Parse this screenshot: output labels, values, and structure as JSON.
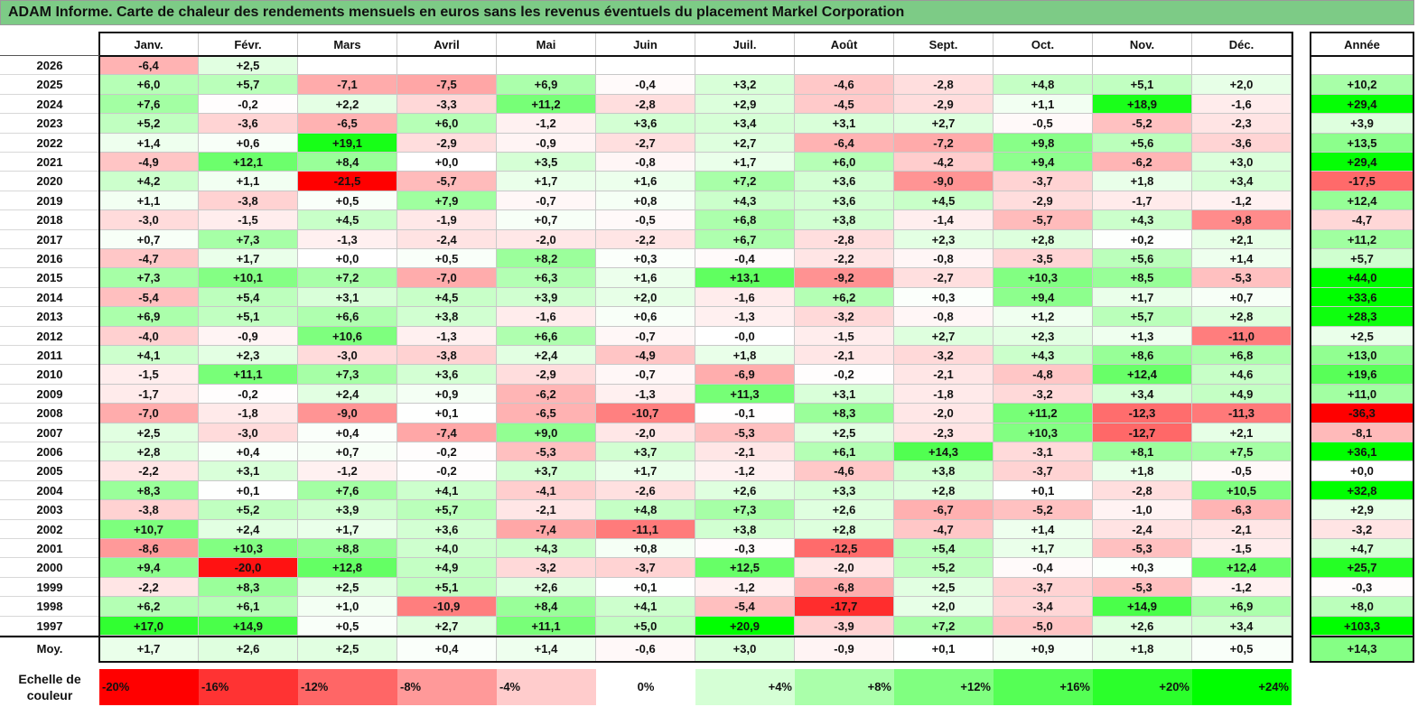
{
  "title": "ADAM Informe. Carte de chaleur des rendements mensuels en euros sans les revenus éventuels du placement Markel Corporation",
  "chart_data": {
    "type": "heatmap",
    "columns": [
      "Janv.",
      "Févr.",
      "Mars",
      "Avril",
      "Mai",
      "Juin",
      "Juil.",
      "Août",
      "Sept.",
      "Oct.",
      "Nov.",
      "Déc."
    ],
    "year_column": "Année",
    "average_label": "Moy.",
    "scale_label": "Echelle de couleur",
    "rows": [
      {
        "label": "2026",
        "months": [
          "-6,4",
          "+2,5",
          "",
          "",
          "",
          "",
          "",
          "",
          "",
          "",
          "",
          ""
        ],
        "year": ""
      },
      {
        "label": "2025",
        "months": [
          "+6,0",
          "+5,7",
          "-7,1",
          "-7,5",
          "+6,9",
          "-0,4",
          "+3,2",
          "-4,6",
          "-2,8",
          "+4,8",
          "+5,1",
          "+2,0"
        ],
        "year": "+10,2"
      },
      {
        "label": "2024",
        "months": [
          "+7,6",
          "-0,2",
          "+2,2",
          "-3,3",
          "+11,2",
          "-2,8",
          "+2,9",
          "-4,5",
          "-2,9",
          "+1,1",
          "+18,9",
          "-1,6"
        ],
        "year": "+29,4"
      },
      {
        "label": "2023",
        "months": [
          "+5,2",
          "-3,6",
          "-6,5",
          "+6,0",
          "-1,2",
          "+3,6",
          "+3,4",
          "+3,1",
          "+2,7",
          "-0,5",
          "-5,2",
          "-2,3"
        ],
        "year": "+3,9"
      },
      {
        "label": "2022",
        "months": [
          "+1,4",
          "+0,6",
          "+19,1",
          "-2,9",
          "-0,9",
          "-2,7",
          "+2,7",
          "-6,4",
          "-7,2",
          "+9,8",
          "+5,6",
          "-3,6"
        ],
        "year": "+13,5"
      },
      {
        "label": "2021",
        "months": [
          "-4,9",
          "+12,1",
          "+8,4",
          "+0,0",
          "+3,5",
          "-0,8",
          "+1,7",
          "+6,0",
          "-4,2",
          "+9,4",
          "-6,2",
          "+3,0"
        ],
        "year": "+29,4"
      },
      {
        "label": "2020",
        "months": [
          "+4,2",
          "+1,1",
          "-21,5",
          "-5,7",
          "+1,7",
          "+1,6",
          "+7,2",
          "+3,6",
          "-9,0",
          "-3,7",
          "+1,8",
          "+3,4"
        ],
        "year": "-17,5"
      },
      {
        "label": "2019",
        "months": [
          "+1,1",
          "-3,8",
          "+0,5",
          "+7,9",
          "-0,7",
          "+0,8",
          "+4,3",
          "+3,6",
          "+4,5",
          "-2,9",
          "-1,7",
          "-1,2"
        ],
        "year": "+12,4"
      },
      {
        "label": "2018",
        "months": [
          "-3,0",
          "-1,5",
          "+4,5",
          "-1,9",
          "+0,7",
          "-0,5",
          "+6,8",
          "+3,8",
          "-1,4",
          "-5,7",
          "+4,3",
          "-9,8"
        ],
        "year": "-4,7"
      },
      {
        "label": "2017",
        "months": [
          "+0,7",
          "+7,3",
          "-1,3",
          "-2,4",
          "-2,0",
          "-2,2",
          "+6,7",
          "-2,8",
          "+2,3",
          "+2,8",
          "+0,2",
          "+2,1"
        ],
        "year": "+11,2"
      },
      {
        "label": "2016",
        "months": [
          "-4,7",
          "+1,7",
          "+0,0",
          "+0,5",
          "+8,2",
          "+0,3",
          "-0,4",
          "-2,2",
          "-0,8",
          "-3,5",
          "+5,6",
          "+1,4"
        ],
        "year": "+5,7"
      },
      {
        "label": "2015",
        "months": [
          "+7,3",
          "+10,1",
          "+7,2",
          "-7,0",
          "+6,3",
          "+1,6",
          "+13,1",
          "-9,2",
          "-2,7",
          "+10,3",
          "+8,5",
          "-5,3"
        ],
        "year": "+44,0"
      },
      {
        "label": "2014",
        "months": [
          "-5,4",
          "+5,4",
          "+3,1",
          "+4,5",
          "+3,9",
          "+2,0",
          "-1,6",
          "+6,2",
          "+0,3",
          "+9,4",
          "+1,7",
          "+0,7"
        ],
        "year": "+33,6"
      },
      {
        "label": "2013",
        "months": [
          "+6,9",
          "+5,1",
          "+6,6",
          "+3,8",
          "-1,6",
          "+0,6",
          "-1,3",
          "-3,2",
          "-0,8",
          "+1,2",
          "+5,7",
          "+2,8"
        ],
        "year": "+28,3"
      },
      {
        "label": "2012",
        "months": [
          "-4,0",
          "-0,9",
          "+10,6",
          "-1,3",
          "+6,6",
          "-0,7",
          "-0,0",
          "-1,5",
          "+2,7",
          "+2,3",
          "+1,3",
          "-11,0"
        ],
        "year": "+2,5"
      },
      {
        "label": "2011",
        "months": [
          "+4,1",
          "+2,3",
          "-3,0",
          "-3,8",
          "+2,4",
          "-4,9",
          "+1,8",
          "-2,1",
          "-3,2",
          "+4,3",
          "+8,6",
          "+6,8"
        ],
        "year": "+13,0"
      },
      {
        "label": "2010",
        "months": [
          "-1,5",
          "+11,1",
          "+7,3",
          "+3,6",
          "-2,9",
          "-0,7",
          "-6,9",
          "-0,2",
          "-2,1",
          "-4,8",
          "+12,4",
          "+4,6"
        ],
        "year": "+19,6"
      },
      {
        "label": "2009",
        "months": [
          "-1,7",
          "-0,2",
          "+2,4",
          "+0,9",
          "-6,2",
          "-1,3",
          "+11,3",
          "+3,1",
          "-1,8",
          "-3,2",
          "+3,4",
          "+4,9"
        ],
        "year": "+11,0"
      },
      {
        "label": "2008",
        "months": [
          "-7,0",
          "-1,8",
          "-9,0",
          "+0,1",
          "-6,5",
          "-10,7",
          "-0,1",
          "+8,3",
          "-2,0",
          "+11,2",
          "-12,3",
          "-11,3"
        ],
        "year": "-36,3"
      },
      {
        "label": "2007",
        "months": [
          "+2,5",
          "-3,0",
          "+0,4",
          "-7,4",
          "+9,0",
          "-2,0",
          "-5,3",
          "+2,5",
          "-2,3",
          "+10,3",
          "-12,7",
          "+2,1"
        ],
        "year": "-8,1"
      },
      {
        "label": "2006",
        "months": [
          "+2,8",
          "+0,4",
          "+0,7",
          "-0,2",
          "-5,3",
          "+3,7",
          "-2,1",
          "+6,1",
          "+14,3",
          "-3,1",
          "+8,1",
          "+7,5"
        ],
        "year": "+36,1"
      },
      {
        "label": "2005",
        "months": [
          "-2,2",
          "+3,1",
          "-1,2",
          "-0,2",
          "+3,7",
          "+1,7",
          "-1,2",
          "-4,6",
          "+3,8",
          "-3,7",
          "+1,8",
          "-0,5"
        ],
        "year": "+0,0"
      },
      {
        "label": "2004",
        "months": [
          "+8,3",
          "+0,1",
          "+7,6",
          "+4,1",
          "-4,1",
          "-2,6",
          "+2,6",
          "+3,3",
          "+2,8",
          "+0,1",
          "-2,8",
          "+10,5"
        ],
        "year": "+32,8"
      },
      {
        "label": "2003",
        "months": [
          "-3,8",
          "+5,2",
          "+3,9",
          "+5,7",
          "-2,1",
          "+4,8",
          "+7,3",
          "+2,6",
          "-6,7",
          "-5,2",
          "-1,0",
          "-6,3"
        ],
        "year": "+2,9"
      },
      {
        "label": "2002",
        "months": [
          "+10,7",
          "+2,4",
          "+1,7",
          "+3,6",
          "-7,4",
          "-11,1",
          "+3,8",
          "+2,8",
          "-4,7",
          "+1,4",
          "-2,4",
          "-2,1"
        ],
        "year": "-3,2"
      },
      {
        "label": "2001",
        "months": [
          "-8,6",
          "+10,3",
          "+8,8",
          "+4,0",
          "+4,3",
          "+0,8",
          "-0,3",
          "-12,5",
          "+5,4",
          "+1,7",
          "-5,3",
          "-1,5"
        ],
        "year": "+4,7"
      },
      {
        "label": "2000",
        "months": [
          "+9,4",
          "-20,0",
          "+12,8",
          "+4,9",
          "-3,2",
          "-3,7",
          "+12,5",
          "-2,0",
          "+5,2",
          "-0,4",
          "+0,3",
          "+12,4"
        ],
        "year": "+25,7"
      },
      {
        "label": "1999",
        "months": [
          "-2,2",
          "+8,3",
          "+2,5",
          "+5,1",
          "+2,6",
          "+0,1",
          "-1,2",
          "-6,8",
          "+2,5",
          "-3,7",
          "-5,3",
          "-1,2"
        ],
        "year": "-0,3"
      },
      {
        "label": "1998",
        "months": [
          "+6,2",
          "+6,1",
          "+1,0",
          "-10,9",
          "+8,4",
          "+4,1",
          "-5,4",
          "-17,7",
          "+2,0",
          "-3,4",
          "+14,9",
          "+6,9"
        ],
        "year": "+8,0"
      },
      {
        "label": "1997",
        "months": [
          "+17,0",
          "+14,9",
          "+0,5",
          "+2,7",
          "+11,1",
          "+5,0",
          "+20,9",
          "-3,9",
          "+7,2",
          "-5,0",
          "+2,6",
          "+3,4"
        ],
        "year": "+103,3"
      }
    ],
    "average": {
      "months": [
        "+1,7",
        "+2,6",
        "+2,5",
        "+0,4",
        "+1,4",
        "-0,6",
        "+3,0",
        "-0,9",
        "+0,1",
        "+0,9",
        "+1,8",
        "+0,5"
      ],
      "year": "+14,3"
    },
    "scale": [
      "-20%",
      "-16%",
      "-12%",
      "-8%",
      "-4%",
      "0%",
      "+4%",
      "+8%",
      "+12%",
      "+16%",
      "+20%",
      "+24%"
    ],
    "colors": {
      "negative": "#ff0000",
      "neutral": "#ffffff",
      "positive": "#00ff00"
    }
  }
}
